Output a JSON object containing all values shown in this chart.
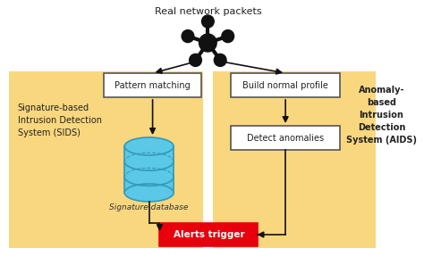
{
  "title": "Real network packets",
  "bg_color": "#ffffff",
  "box_left_bg": "#f9d77e",
  "box_right_bg": "#f9d77e",
  "rect_fill": "#ffffff",
  "rect_border": "#555555",
  "alert_fill": "#e8000d",
  "alert_text": "#ffffff",
  "alert_label": "Alerts trigger",
  "pattern_label": "Pattern matching",
  "build_label": "Build normal profile",
  "detect_label": "Detect anomalies",
  "sids_label": "Signature-based\nIntrusion Detection\nSystem (SIDS)",
  "sids_italic": "Signature database",
  "aids_label": "Anomaly-\nbased\nIntrusion\nDetection\nSystem (AIDS)",
  "node_color": "#111111",
  "arrow_color": "#111111",
  "db_fill": "#5bc8e8",
  "db_stroke": "#3399bb"
}
